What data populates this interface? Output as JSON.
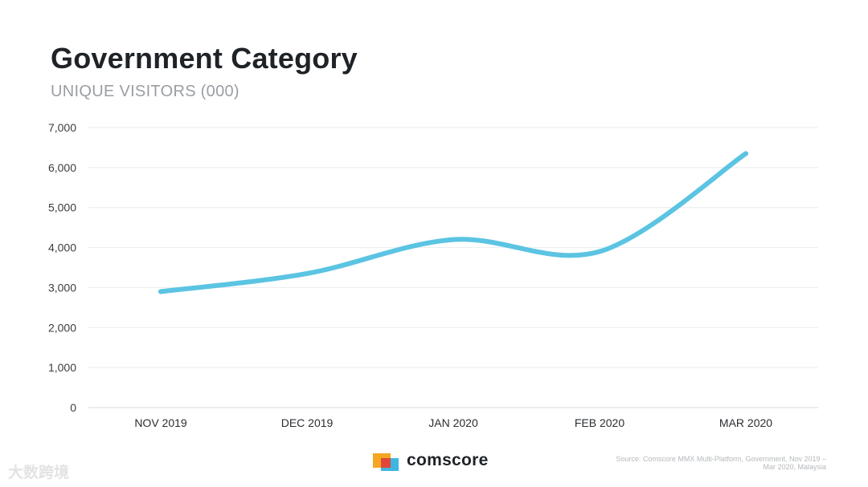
{
  "header": {
    "title": "Government Category",
    "subtitle": "UNIQUE VISITORS (000)"
  },
  "chart_data": {
    "type": "line",
    "categories": [
      "NOV 2019",
      "DEC 2019",
      "JAN 2020",
      "FEB 2020",
      "MAR 2020"
    ],
    "series": [
      {
        "values": [
          2900,
          3350,
          4200,
          3900,
          6350
        ]
      }
    ],
    "yticks": [
      0,
      1000,
      2000,
      3000,
      4000,
      5000,
      6000,
      7000
    ],
    "ytick_labels": [
      "0",
      "1,000",
      "2,000",
      "3,000",
      "4,000",
      "5,000",
      "6,000",
      "7,000"
    ],
    "ylim": [
      0,
      7000
    ],
    "grid": true,
    "line_color": "#5bc4e2",
    "xlabel": "",
    "ylabel": ""
  },
  "brand": {
    "logo_text": "comscore",
    "logo_colors": [
      "#f5a623",
      "#3fb6e0",
      "#e2463b"
    ]
  },
  "footer": {
    "source_line1": "Source: Comscore MMX Multi-Platform, Government, Nov 2019 –",
    "source_line2": "Mar 2020, Malaysia",
    "watermark": "大数跨境"
  }
}
